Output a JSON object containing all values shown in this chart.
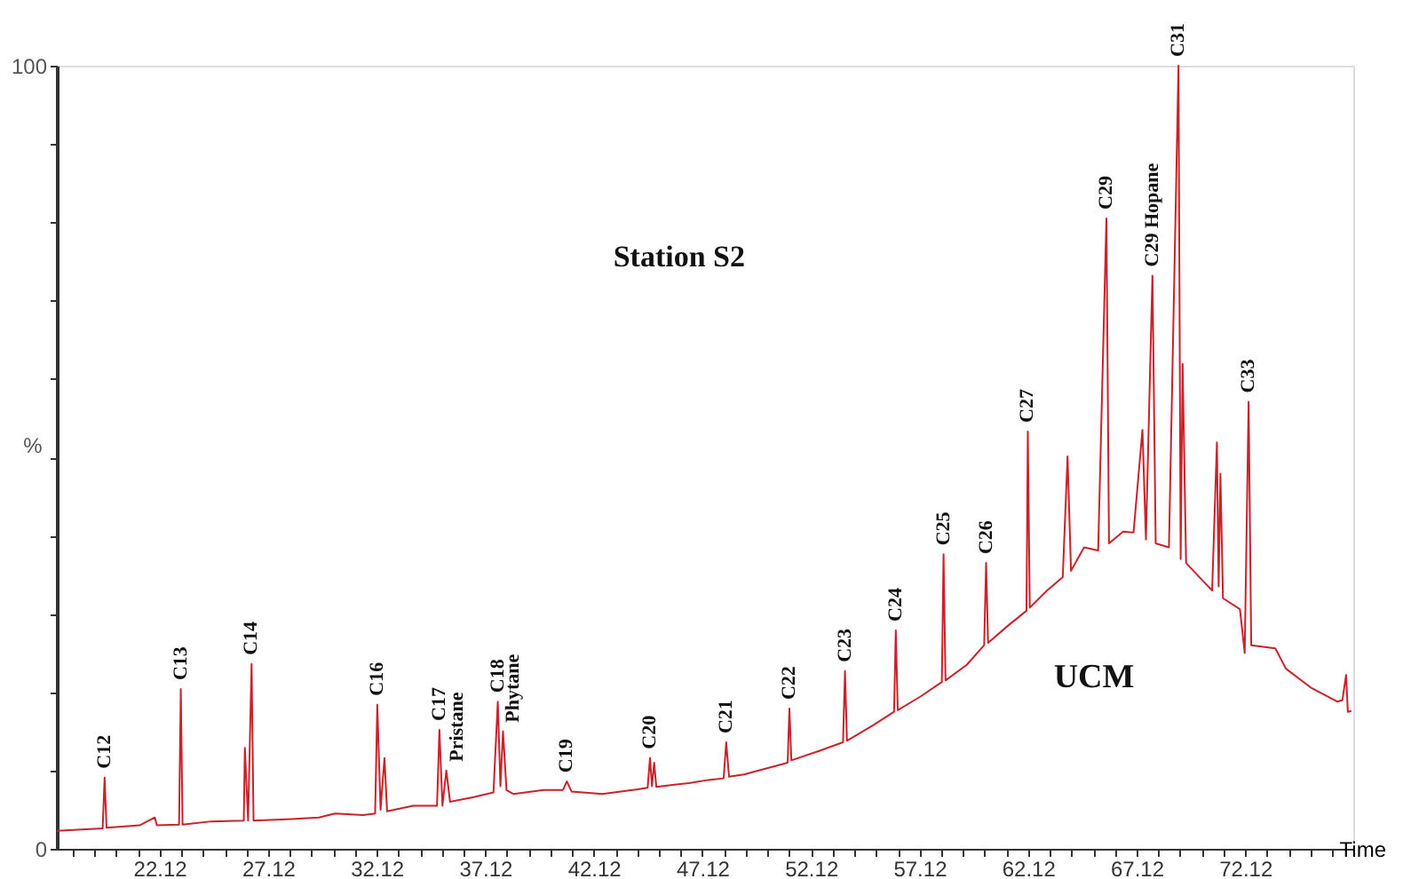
{
  "chart_data": {
    "type": "line",
    "ylabel": "%",
    "xlabel": "Time",
    "grid": false,
    "marker": "none",
    "line_style": "solid",
    "xlim": [
      17.39,
      77.1
    ],
    "ylim": [
      0,
      100
    ],
    "xticks": [
      {
        "value": 18.12,
        "label": null
      },
      {
        "value": 19.12,
        "label": null
      },
      {
        "value": 20.12,
        "label": null
      },
      {
        "value": 21.12,
        "label": null
      },
      22.12,
      {
        "value": 23.12,
        "label": null
      },
      {
        "value": 24.12,
        "label": null
      },
      {
        "value": 25.12,
        "label": null
      },
      {
        "value": 26.12,
        "label": null
      },
      27.12,
      {
        "value": 28.12,
        "label": null
      },
      {
        "value": 29.12,
        "label": null
      },
      {
        "value": 30.12,
        "label": null
      },
      {
        "value": 31.12,
        "label": null
      },
      32.12,
      {
        "value": 33.12,
        "label": null
      },
      {
        "value": 34.12,
        "label": null
      },
      {
        "value": 35.12,
        "label": null
      },
      {
        "value": 36.12,
        "label": null
      },
      37.12,
      {
        "value": 38.12,
        "label": null
      },
      {
        "value": 39.12,
        "label": null
      },
      {
        "value": 40.12,
        "label": null
      },
      {
        "value": 41.12,
        "label": null
      },
      42.12,
      {
        "value": 43.12,
        "label": null
      },
      {
        "value": 44.12,
        "label": null
      },
      {
        "value": 45.12,
        "label": null
      },
      {
        "value": 46.12,
        "label": null
      },
      47.12,
      {
        "value": 48.12,
        "label": null
      },
      {
        "value": 49.12,
        "label": null
      },
      {
        "value": 50.12,
        "label": null
      },
      {
        "value": 51.12,
        "label": null
      },
      52.12,
      {
        "value": 53.12,
        "label": null
      },
      {
        "value": 54.12,
        "label": null
      },
      {
        "value": 55.12,
        "label": null
      },
      {
        "value": 56.12,
        "label": null
      },
      57.12,
      {
        "value": 58.12,
        "label": null
      },
      {
        "value": 59.12,
        "label": null
      },
      {
        "value": 60.12,
        "label": null
      },
      {
        "value": 61.12,
        "label": null
      },
      62.12,
      {
        "value": 63.12,
        "label": null
      },
      {
        "value": 64.12,
        "label": null
      },
      {
        "value": 65.12,
        "label": null
      },
      {
        "value": 66.12,
        "label": null
      },
      67.12,
      {
        "value": 68.12,
        "label": null
      },
      {
        "value": 69.12,
        "label": null
      },
      {
        "value": 70.12,
        "label": null
      },
      {
        "value": 71.12,
        "label": null
      },
      72.12,
      {
        "value": 73.12,
        "label": null
      },
      {
        "value": 74.12,
        "label": null
      },
      {
        "value": 75.12,
        "label": null
      },
      {
        "value": 76.12,
        "label": null
      }
    ],
    "yticks": [
      0,
      {
        "value": 10,
        "label": null
      },
      {
        "value": 20,
        "label": null
      },
      {
        "value": 30,
        "label": null
      },
      {
        "value": 40,
        "label": null
      },
      {
        "value": 50,
        "label": null
      },
      {
        "value": 60,
        "label": null
      },
      {
        "value": 70,
        "label": null
      },
      {
        "value": 80,
        "label": null
      },
      {
        "value": 90,
        "label": null
      },
      100
    ],
    "series": [
      {
        "color": "#c8232b",
        "x": [
          17.39,
          19.5,
          19.59,
          19.68,
          21.2,
          21.9,
          22.0,
          23.02,
          23.1,
          23.18,
          24.5,
          26.0,
          26.05,
          26.2,
          26.36,
          26.45,
          28.2,
          29.46,
          30.2,
          31.5,
          32.05,
          32.15,
          32.3,
          32.48,
          32.6,
          33.8,
          34.9,
          35.01,
          35.15,
          35.33,
          35.5,
          36.6,
          37.5,
          37.7,
          37.82,
          37.94,
          38.1,
          38.43,
          39.8,
          40.7,
          40.88,
          41.1,
          42.51,
          44.14,
          44.6,
          44.71,
          44.8,
          44.9,
          45.0,
          46.5,
          47.41,
          48.1,
          48.22,
          48.35,
          49.04,
          51.05,
          51.13,
          51.22,
          52.5,
          53.6,
          53.69,
          53.78,
          55.0,
          55.95,
          56.03,
          56.12,
          57.2,
          58.15,
          58.23,
          58.32,
          59.3,
          60.1,
          60.19,
          60.28,
          61.2,
          62.05,
          62.11,
          62.2,
          63.0,
          63.72,
          63.94,
          64.1,
          64.7,
          65.35,
          65.73,
          65.85,
          66.5,
          66.98,
          67.39,
          67.55,
          67.85,
          68.0,
          68.61,
          69.05,
          69.15,
          69.24,
          69.4,
          70.25,
          70.6,
          70.82,
          70.9,
          70.98,
          71.1,
          71.88,
          72.1,
          72.28,
          72.4,
          73.51,
          74.0,
          75.14,
          76.36,
          76.6,
          76.77,
          76.85,
          77.01
        ],
        "values": [
          2.3,
          2.6,
          9.1,
          2.7,
          3.0,
          4.0,
          3.0,
          3.1,
          20.4,
          3.1,
          3.5,
          3.6,
          12.9,
          3.6,
          23.6,
          3.6,
          3.8,
          4.0,
          4.5,
          4.3,
          4.5,
          18.4,
          5.0,
          11.6,
          4.8,
          5.5,
          5.5,
          15.2,
          5.5,
          10.0,
          6.0,
          6.6,
          7.2,
          18.8,
          8.0,
          15.0,
          7.5,
          7.0,
          7.5,
          7.5,
          8.6,
          7.3,
          7.0,
          7.6,
          7.8,
          11.6,
          8.0,
          11.0,
          7.9,
          8.4,
          8.8,
          9.0,
          13.6,
          9.2,
          9.5,
          11.0,
          17.9,
          11.3,
          12.5,
          13.6,
          22.7,
          13.8,
          15.8,
          17.5,
          27.9,
          17.7,
          19.5,
          21.3,
          37.6,
          21.5,
          23.5,
          26.0,
          36.5,
          26.3,
          28.5,
          30.4,
          53.3,
          30.8,
          33.0,
          34.7,
          50.1,
          35.5,
          38.5,
          38.1,
          80.5,
          39.0,
          40.5,
          40.4,
          53.5,
          39.5,
          73.2,
          39.0,
          38.5,
          100,
          37.0,
          61.9,
          36.5,
          34.0,
          33.0,
          51.9,
          33.5,
          47.9,
          32.0,
          30.6,
          25.0,
          57.1,
          26.0,
          25.6,
          23.0,
          20.6,
          18.8,
          19.0,
          22.2,
          17.5,
          17.6
        ]
      }
    ],
    "annotations": [
      "Station S2",
      "UCM",
      {
        "text": "C12",
        "x": 19.59,
        "y": 9.1
      },
      {
        "text": "C13",
        "x": 23.1,
        "y": 20.4
      },
      {
        "text": "C14",
        "x": 26.36,
        "y": 23.6
      },
      {
        "text": "C16",
        "x": 32.15,
        "y": 18.4
      },
      {
        "text": "C17",
        "x": 35.01,
        "y": 15.2
      },
      {
        "text": "Pristane",
        "x": 35.33,
        "y": 10.0
      },
      {
        "text": "C18",
        "x": 37.7,
        "y": 18.8
      },
      {
        "text": "Phytane",
        "x": 37.94,
        "y": 15.0
      },
      {
        "text": "C19",
        "x": 40.88,
        "y": 8.6
      },
      {
        "text": "C20",
        "x": 44.71,
        "y": 11.6
      },
      {
        "text": "C21",
        "x": 48.22,
        "y": 13.6
      },
      {
        "text": "C22",
        "x": 51.13,
        "y": 17.9
      },
      {
        "text": "C23",
        "x": 53.69,
        "y": 22.7
      },
      {
        "text": "C24",
        "x": 56.03,
        "y": 27.9
      },
      {
        "text": "C25",
        "x": 58.23,
        "y": 37.6
      },
      {
        "text": "C26",
        "x": 60.19,
        "y": 36.5
      },
      {
        "text": "C27",
        "x": 62.11,
        "y": 53.3
      },
      {
        "text": "C29",
        "x": 65.73,
        "y": 80.5
      },
      {
        "text": "C29 Hopane",
        "x": 67.85,
        "y": 73.2
      },
      {
        "text": "C31",
        "x": 69.05,
        "y": 100
      },
      {
        "text": "C33",
        "x": 72.28,
        "y": 57.1
      }
    ]
  }
}
